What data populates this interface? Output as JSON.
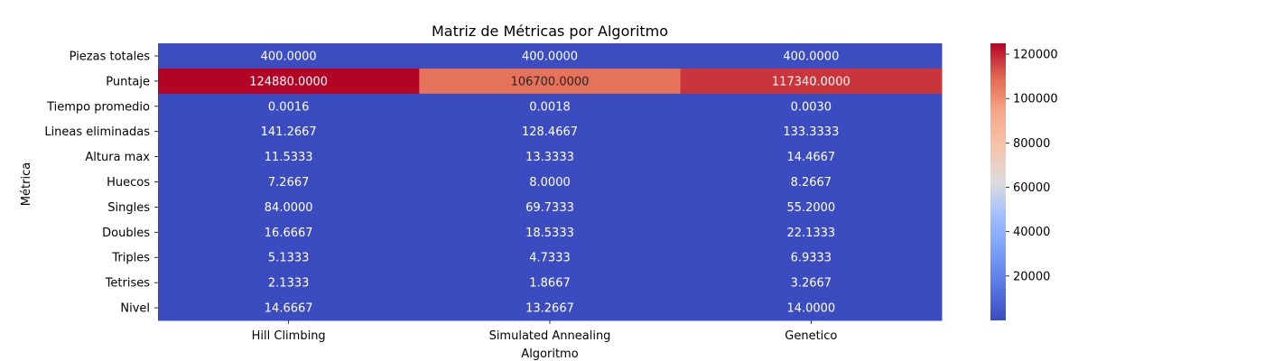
{
  "chart_data": {
    "type": "heatmap",
    "title": "Matriz de Métricas por Algoritmo",
    "xlabel": "Algoritmo",
    "ylabel": "Métrica",
    "columns": [
      "Hill Climbing",
      "Simulated Annealing",
      "Genetico"
    ],
    "rows": [
      "Piezas totales",
      "Puntaje",
      "Tiempo promedio",
      "Lineas eliminadas",
      "Altura max",
      "Huecos",
      "Singles",
      "Doubles",
      "Triples",
      "Tetrises",
      "Nivel"
    ],
    "values": [
      [
        400.0,
        400.0,
        400.0
      ],
      [
        124880.0,
        106700.0,
        117340.0
      ],
      [
        0.0016,
        0.0018,
        0.003
      ],
      [
        141.2667,
        128.4667,
        133.3333
      ],
      [
        11.5333,
        13.3333,
        14.4667
      ],
      [
        7.2667,
        8.0,
        8.2667
      ],
      [
        84.0,
        69.7333,
        55.2
      ],
      [
        16.6667,
        18.5333,
        22.1333
      ],
      [
        5.1333,
        4.7333,
        6.9333
      ],
      [
        2.1333,
        1.8667,
        3.2667
      ],
      [
        14.6667,
        13.2667,
        14.0
      ]
    ],
    "value_format_decimals": 4,
    "colormap": "coolwarm",
    "colorbar": {
      "min": 0.0016,
      "max": 124880.0,
      "ticks": [
        20000,
        40000,
        60000,
        80000,
        100000,
        120000
      ],
      "placement": "right"
    }
  }
}
